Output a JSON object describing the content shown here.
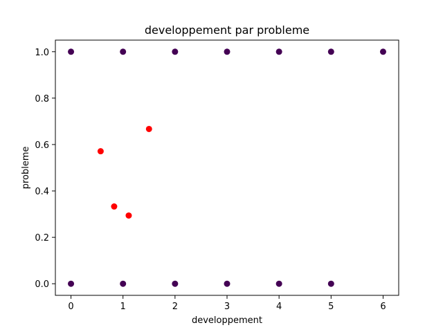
{
  "chart_data": {
    "type": "scatter",
    "title": "developpement par probleme",
    "xlabel": "developpement",
    "ylabel": "probleme",
    "xlim": [
      -0.3,
      6.3
    ],
    "ylim": [
      -0.05,
      1.05
    ],
    "x_ticks": [
      0,
      1,
      2,
      3,
      4,
      5,
      6
    ],
    "y_ticks": [
      0.0,
      0.2,
      0.4,
      0.6,
      0.8,
      1.0
    ],
    "x_tick_labels": [
      "0",
      "1",
      "2",
      "3",
      "4",
      "5",
      "6"
    ],
    "y_tick_labels": [
      "0.0",
      "0.2",
      "0.4",
      "0.6",
      "0.8",
      "1.0"
    ],
    "grid": false,
    "legend": "none",
    "series": [
      {
        "color": "#440154",
        "points": [
          {
            "x": 0,
            "y": 1.0
          },
          {
            "x": 1,
            "y": 1.0
          },
          {
            "x": 2,
            "y": 1.0
          },
          {
            "x": 3,
            "y": 1.0
          },
          {
            "x": 4,
            "y": 1.0
          },
          {
            "x": 5,
            "y": 1.0
          },
          {
            "x": 6,
            "y": 1.0
          },
          {
            "x": 0,
            "y": 0.0
          },
          {
            "x": 1,
            "y": 0.0
          },
          {
            "x": 2,
            "y": 0.0
          },
          {
            "x": 3,
            "y": 0.0
          },
          {
            "x": 4,
            "y": 0.0
          },
          {
            "x": 5,
            "y": 0.0
          }
        ]
      },
      {
        "color": "#ff0000",
        "points": [
          {
            "x": 0.57,
            "y": 0.571
          },
          {
            "x": 0.83,
            "y": 0.333
          },
          {
            "x": 1.11,
            "y": 0.294
          },
          {
            "x": 1.5,
            "y": 0.667
          }
        ]
      }
    ]
  }
}
